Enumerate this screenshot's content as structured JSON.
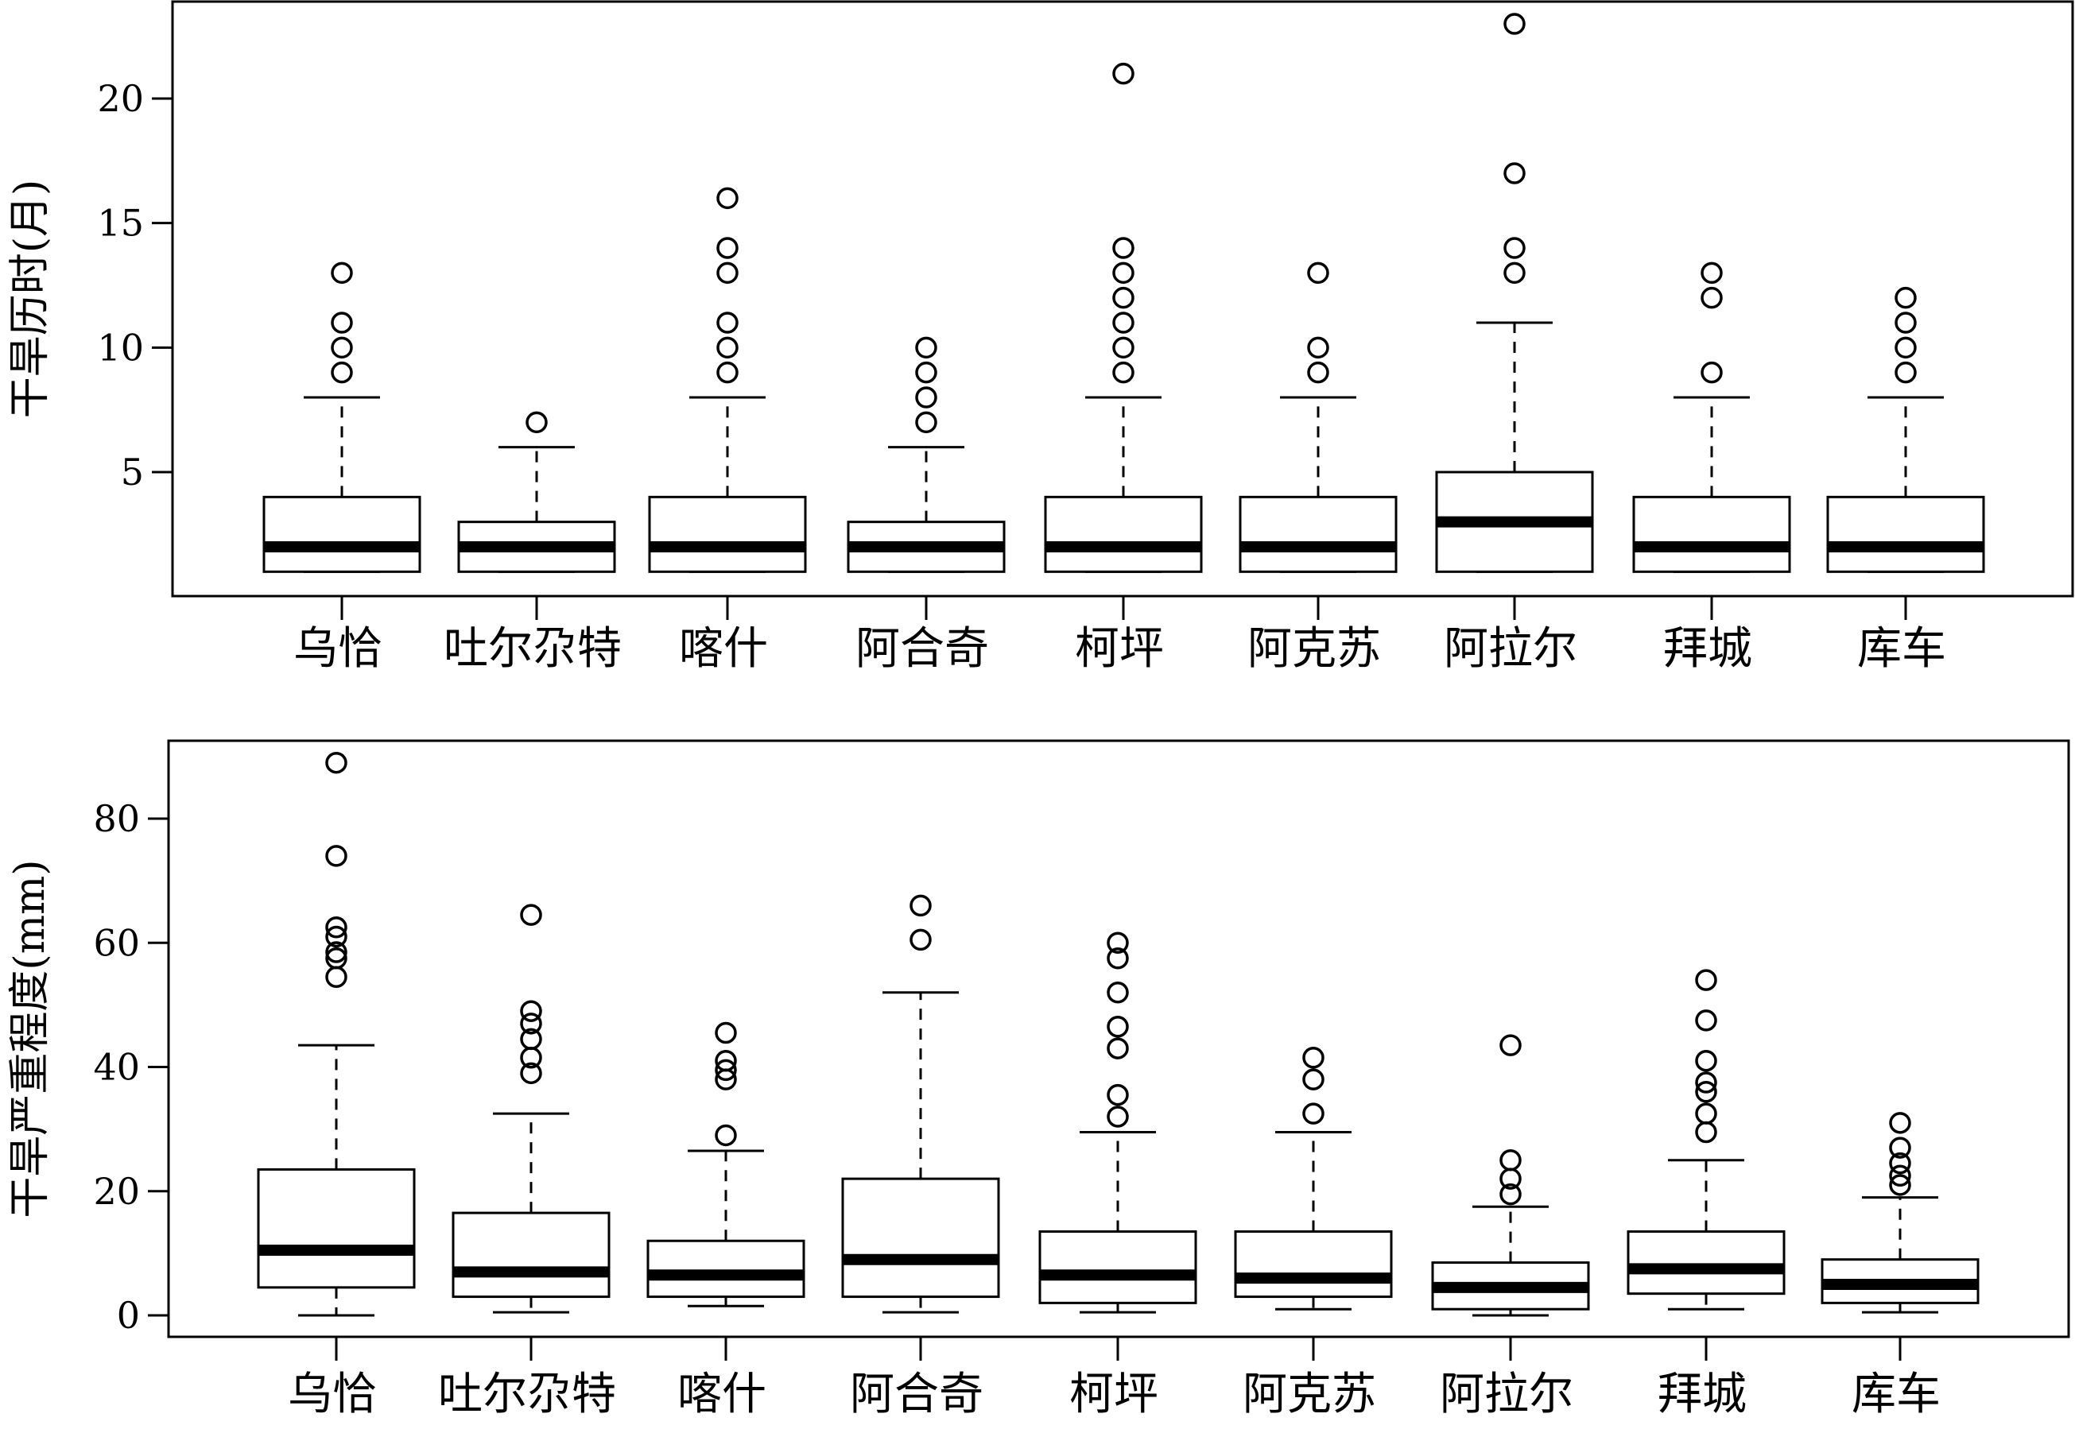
{
  "chart_data": [
    {
      "type": "boxplot",
      "ylabel": "干旱历时(月)",
      "categories": [
        "乌恰",
        "吐尔尕特",
        "喀什",
        "阿合奇",
        "柯坪",
        "阿克苏",
        "阿拉尔",
        "拜城",
        "库车"
      ],
      "yticks": [
        5,
        10,
        15,
        20
      ],
      "ylim": [
        0,
        24
      ],
      "grid": false,
      "boxes": [
        {
          "min": 1,
          "q1": 1,
          "median": 2,
          "q3": 4,
          "max": 8,
          "outliers": [
            9,
            10,
            11,
            13
          ]
        },
        {
          "min": 1,
          "q1": 1,
          "median": 2,
          "q3": 3,
          "max": 6,
          "outliers": [
            7
          ]
        },
        {
          "min": 1,
          "q1": 1,
          "median": 2,
          "q3": 4,
          "max": 8,
          "outliers": [
            9,
            10,
            11,
            13,
            14,
            16
          ]
        },
        {
          "min": 1,
          "q1": 1,
          "median": 2,
          "q3": 3,
          "max": 6,
          "outliers": [
            7,
            8,
            9,
            10
          ]
        },
        {
          "min": 1,
          "q1": 1,
          "median": 2,
          "q3": 4,
          "max": 8,
          "outliers": [
            9,
            10,
            11,
            12,
            13,
            14,
            21
          ]
        },
        {
          "min": 1,
          "q1": 1,
          "median": 2,
          "q3": 4,
          "max": 8,
          "outliers": [
            9,
            10,
            13
          ]
        },
        {
          "min": 1,
          "q1": 1,
          "median": 3,
          "q3": 5,
          "max": 11,
          "outliers": [
            13,
            14,
            17,
            23
          ]
        },
        {
          "min": 1,
          "q1": 1,
          "median": 2,
          "q3": 4,
          "max": 8,
          "outliers": [
            9,
            12,
            13
          ]
        },
        {
          "min": 1,
          "q1": 1,
          "median": 2,
          "q3": 4,
          "max": 8,
          "outliers": [
            9,
            10,
            11,
            12
          ]
        }
      ]
    },
    {
      "type": "boxplot",
      "ylabel": "干旱严重程度(mm)",
      "categories": [
        "乌恰",
        "吐尔尕特",
        "喀什",
        "阿合奇",
        "柯坪",
        "阿克苏",
        "阿拉尔",
        "拜城",
        "库车"
      ],
      "yticks": [
        0,
        20,
        40,
        60,
        80
      ],
      "ylim": [
        -3,
        93
      ],
      "grid": false,
      "boxes": [
        {
          "min": 0,
          "q1": 4.5,
          "median": 10.5,
          "q3": 23.5,
          "max": 43.5,
          "outliers": [
            54.5,
            57.5,
            58.5,
            61,
            62.5,
            74,
            89
          ]
        },
        {
          "min": 0.5,
          "q1": 3,
          "median": 7,
          "q3": 16.5,
          "max": 32.5,
          "outliers": [
            39,
            41.5,
            44.5,
            47,
            49,
            64.5
          ]
        },
        {
          "min": 1.5,
          "q1": 3,
          "median": 6.5,
          "q3": 12,
          "max": 26.5,
          "outliers": [
            29,
            38,
            39.5,
            41,
            45.5
          ]
        },
        {
          "min": 0.5,
          "q1": 3,
          "median": 9,
          "q3": 22,
          "max": 52,
          "outliers": [
            60.5,
            66
          ]
        },
        {
          "min": 0.5,
          "q1": 2,
          "median": 6.5,
          "q3": 13.5,
          "max": 29.5,
          "outliers": [
            32,
            35.5,
            43,
            46.5,
            52,
            57.5,
            60
          ]
        },
        {
          "min": 1,
          "q1": 3,
          "median": 6,
          "q3": 13.5,
          "max": 29.5,
          "outliers": [
            32.5,
            38,
            41.5
          ]
        },
        {
          "min": 0,
          "q1": 1,
          "median": 4.5,
          "q3": 8.5,
          "max": 17.5,
          "outliers": [
            19.5,
            22,
            25,
            43.5
          ]
        },
        {
          "min": 1,
          "q1": 3.5,
          "median": 7.5,
          "q3": 13.5,
          "max": 25,
          "outliers": [
            29.5,
            32.5,
            36,
            37.5,
            41,
            47.5,
            54
          ]
        },
        {
          "min": 0.5,
          "q1": 2,
          "median": 5,
          "q3": 9,
          "max": 19,
          "outliers": [
            21,
            22.5,
            24.5,
            27,
            31
          ]
        }
      ]
    }
  ]
}
